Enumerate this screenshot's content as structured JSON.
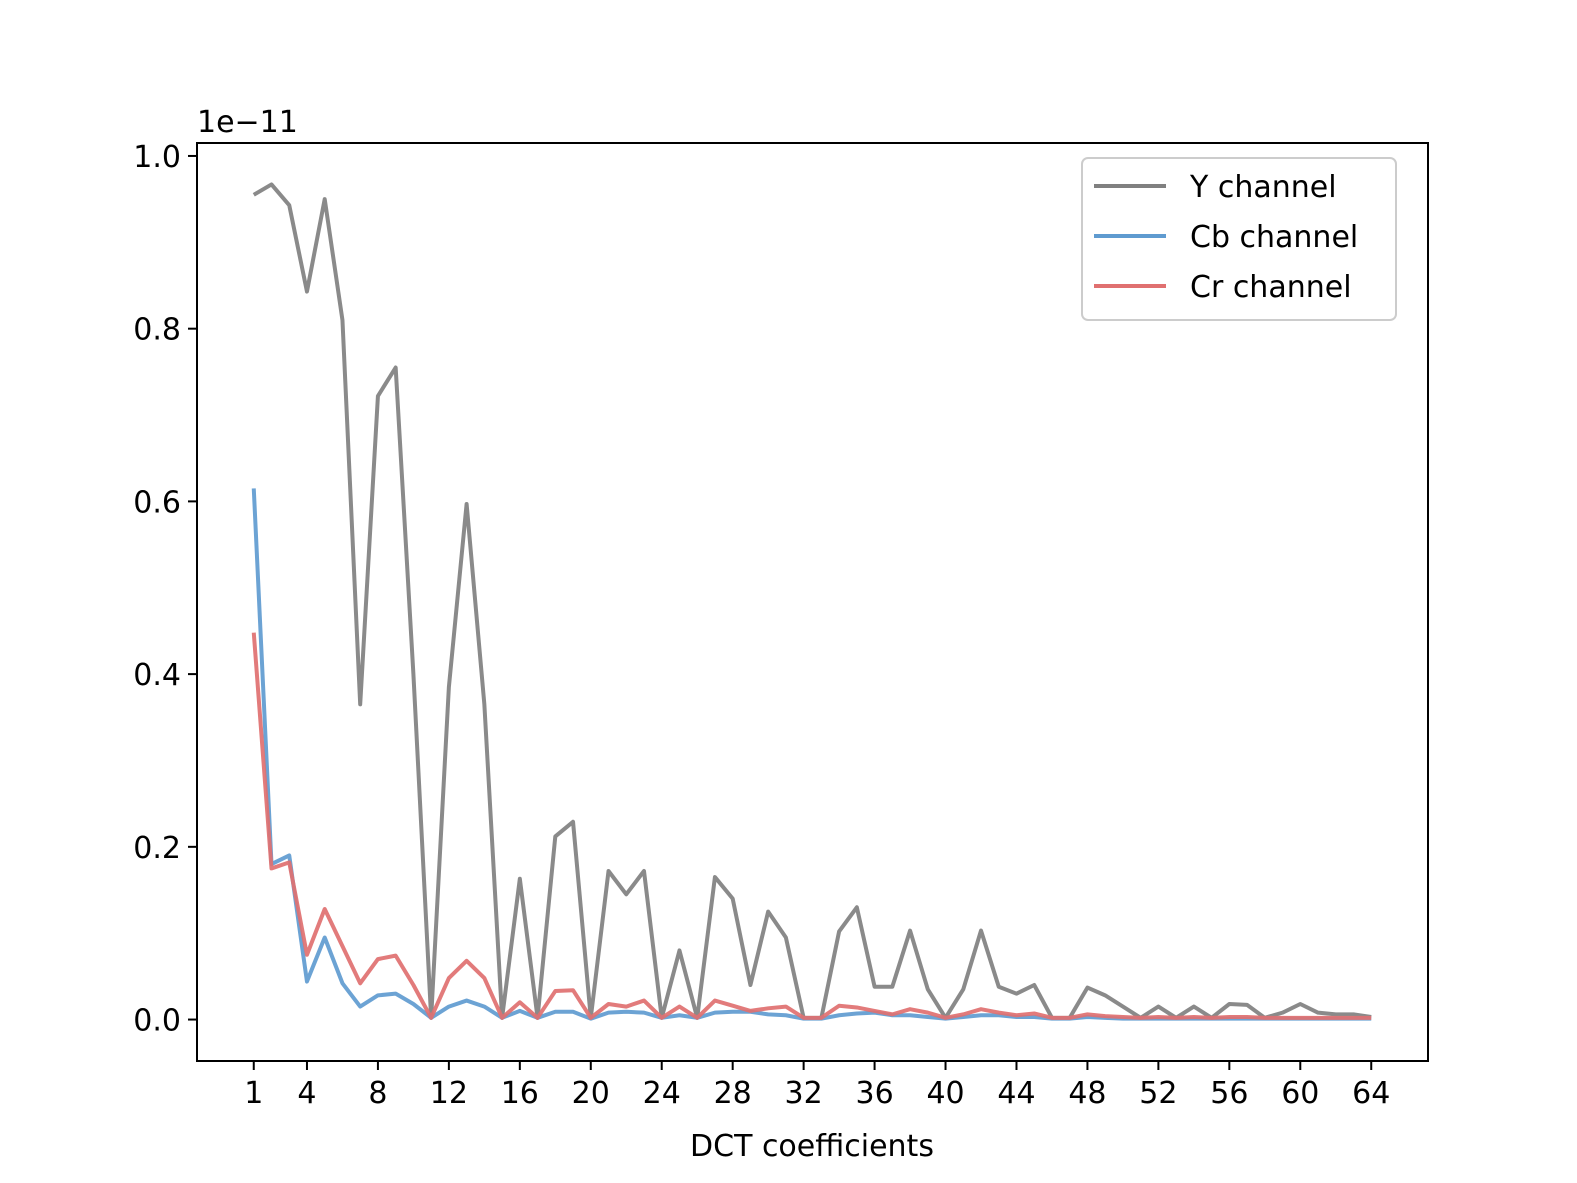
{
  "chart_data": {
    "type": "line",
    "xlabel": "DCT coefficients",
    "ylabel": "",
    "y_offset_text": "1e−11",
    "xlim": [
      -2.2,
      67.2
    ],
    "ylim": [
      -0.048,
      1.015
    ],
    "x_ticks": [
      1,
      4,
      8,
      12,
      16,
      20,
      24,
      28,
      32,
      36,
      40,
      44,
      48,
      52,
      56,
      60,
      64
    ],
    "y_ticks": [
      0.0,
      0.2,
      0.4,
      0.6,
      0.8,
      1.0
    ],
    "y_tick_labels": [
      "0.0",
      "0.2",
      "0.4",
      "0.6",
      "0.8",
      "1.0"
    ],
    "legend_position": "top-right",
    "grid": false,
    "x": [
      1,
      2,
      3,
      4,
      5,
      6,
      7,
      8,
      9,
      10,
      11,
      12,
      13,
      14,
      15,
      16,
      17,
      18,
      19,
      20,
      21,
      22,
      23,
      24,
      25,
      26,
      27,
      28,
      29,
      30,
      31,
      32,
      33,
      34,
      35,
      36,
      37,
      38,
      39,
      40,
      41,
      42,
      43,
      44,
      45,
      46,
      47,
      48,
      49,
      50,
      51,
      52,
      53,
      54,
      55,
      56,
      57,
      58,
      59,
      60,
      61,
      62,
      63,
      64
    ],
    "series": [
      {
        "name": "Y channel",
        "color": "#808080",
        "values": [
          0.955,
          0.967,
          0.943,
          0.843,
          0.95,
          0.81,
          0.365,
          0.722,
          0.755,
          0.4,
          0.002,
          0.385,
          0.597,
          0.365,
          0.002,
          0.163,
          0.002,
          0.212,
          0.229,
          0.002,
          0.172,
          0.145,
          0.172,
          0.002,
          0.08,
          0.002,
          0.165,
          0.14,
          0.04,
          0.125,
          0.095,
          0.002,
          0.002,
          0.102,
          0.13,
          0.038,
          0.038,
          0.103,
          0.035,
          0.002,
          0.035,
          0.103,
          0.038,
          0.03,
          0.04,
          0.002,
          0.002,
          0.037,
          0.028,
          0.015,
          0.002,
          0.015,
          0.002,
          0.015,
          0.002,
          0.018,
          0.017,
          0.002,
          0.008,
          0.018,
          0.008,
          0.006,
          0.006,
          0.003
        ]
      },
      {
        "name": "Cb channel",
        "color": "#5f9bd0",
        "values": [
          0.615,
          0.18,
          0.19,
          0.044,
          0.095,
          0.042,
          0.015,
          0.028,
          0.03,
          0.018,
          0.002,
          0.015,
          0.022,
          0.015,
          0.002,
          0.01,
          0.002,
          0.009,
          0.009,
          0.001,
          0.008,
          0.009,
          0.008,
          0.002,
          0.005,
          0.002,
          0.008,
          0.009,
          0.009,
          0.006,
          0.005,
          0.001,
          0.001,
          0.005,
          0.007,
          0.008,
          0.005,
          0.005,
          0.003,
          0.001,
          0.003,
          0.005,
          0.005,
          0.003,
          0.003,
          0.001,
          0.001,
          0.003,
          0.002,
          0.001,
          0.001,
          0.001,
          0.001,
          0.001,
          0.001,
          0.001,
          0.001,
          0.001,
          0.001,
          0.001,
          0.001,
          0.001,
          0.001,
          0.001
        ]
      },
      {
        "name": "Cr channel",
        "color": "#e07070",
        "values": [
          0.448,
          0.175,
          0.182,
          0.075,
          0.128,
          0.085,
          0.042,
          0.07,
          0.074,
          0.04,
          0.002,
          0.048,
          0.068,
          0.048,
          0.002,
          0.02,
          0.002,
          0.033,
          0.034,
          0.002,
          0.018,
          0.015,
          0.022,
          0.002,
          0.015,
          0.002,
          0.022,
          0.016,
          0.01,
          0.013,
          0.015,
          0.002,
          0.002,
          0.016,
          0.014,
          0.01,
          0.006,
          0.012,
          0.008,
          0.002,
          0.006,
          0.012,
          0.008,
          0.005,
          0.007,
          0.002,
          0.002,
          0.006,
          0.004,
          0.003,
          0.002,
          0.003,
          0.002,
          0.003,
          0.002,
          0.003,
          0.003,
          0.002,
          0.002,
          0.002,
          0.002,
          0.002,
          0.002,
          0.002
        ]
      }
    ]
  }
}
